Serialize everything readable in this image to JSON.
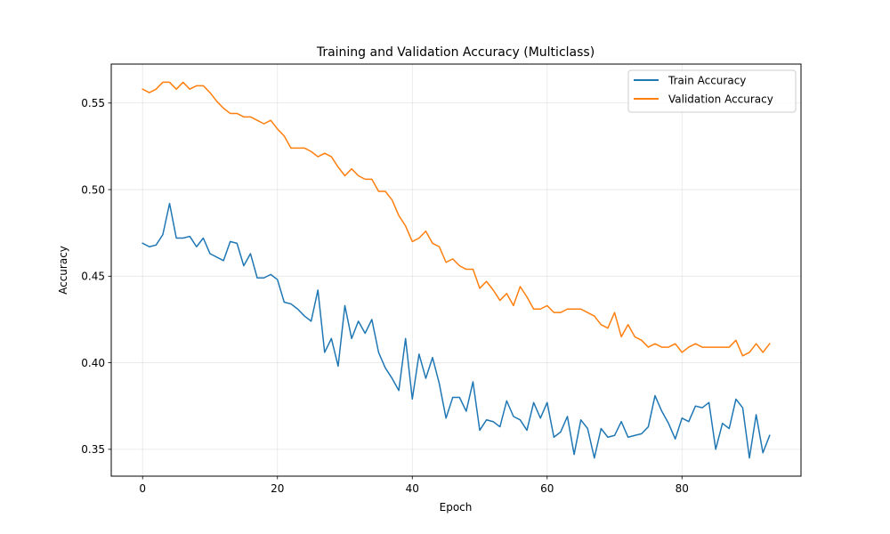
{
  "chart_data": {
    "type": "line",
    "title": "Training and Validation Accuracy (Multiclass)",
    "xlabel": "Epoch",
    "ylabel": "Accuracy",
    "xlim": [
      -4.65,
      97.65
    ],
    "ylim": [
      0.3345,
      0.5725
    ],
    "xticks": [
      0,
      20,
      40,
      60,
      80
    ],
    "yticks": [
      0.35,
      0.4,
      0.45,
      0.5,
      0.55
    ],
    "ytick_labels": [
      "0.35",
      "0.40",
      "0.45",
      "0.50",
      "0.55"
    ],
    "grid": true,
    "legend_position": "top-right",
    "series": [
      {
        "name": "Train Accuracy",
        "color": "#1f77b4",
        "values": [
          0.469,
          0.467,
          0.468,
          0.474,
          0.492,
          0.472,
          0.472,
          0.473,
          0.467,
          0.472,
          0.463,
          0.461,
          0.459,
          0.47,
          0.469,
          0.456,
          0.463,
          0.449,
          0.449,
          0.451,
          0.448,
          0.435,
          0.434,
          0.431,
          0.427,
          0.424,
          0.442,
          0.406,
          0.414,
          0.398,
          0.433,
          0.414,
          0.424,
          0.417,
          0.425,
          0.406,
          0.397,
          0.391,
          0.384,
          0.414,
          0.379,
          0.405,
          0.391,
          0.403,
          0.388,
          0.368,
          0.38,
          0.38,
          0.372,
          0.389,
          0.361,
          0.367,
          0.366,
          0.363,
          0.378,
          0.369,
          0.367,
          0.361,
          0.377,
          0.368,
          0.377,
          0.357,
          0.36,
          0.369,
          0.347,
          0.367,
          0.362,
          0.345,
          0.362,
          0.357,
          0.358,
          0.366,
          0.357,
          0.358,
          0.359,
          0.363,
          0.381,
          0.372,
          0.365,
          0.356,
          0.368,
          0.366,
          0.375,
          0.374,
          0.377,
          0.35,
          0.365,
          0.362,
          0.379,
          0.374,
          0.345,
          0.37,
          0.348,
          0.358
        ]
      },
      {
        "name": "Validation Accuracy",
        "color": "#ff7f0e",
        "values": [
          0.558,
          0.556,
          0.558,
          0.562,
          0.562,
          0.558,
          0.562,
          0.558,
          0.56,
          0.56,
          0.556,
          0.551,
          0.547,
          0.544,
          0.544,
          0.542,
          0.542,
          0.54,
          0.538,
          0.54,
          0.535,
          0.531,
          0.524,
          0.524,
          0.524,
          0.522,
          0.519,
          0.521,
          0.519,
          0.513,
          0.508,
          0.512,
          0.508,
          0.506,
          0.506,
          0.499,
          0.499,
          0.494,
          0.485,
          0.479,
          0.47,
          0.472,
          0.476,
          0.469,
          0.467,
          0.458,
          0.46,
          0.456,
          0.454,
          0.454,
          0.443,
          0.447,
          0.442,
          0.436,
          0.44,
          0.433,
          0.444,
          0.438,
          0.431,
          0.431,
          0.433,
          0.429,
          0.429,
          0.431,
          0.431,
          0.431,
          0.429,
          0.427,
          0.422,
          0.42,
          0.429,
          0.415,
          0.422,
          0.415,
          0.413,
          0.409,
          0.411,
          0.409,
          0.409,
          0.411,
          0.406,
          0.409,
          0.411,
          0.409,
          0.409,
          0.409,
          0.409,
          0.409,
          0.413,
          0.404,
          0.406,
          0.411,
          0.406,
          0.411
        ]
      }
    ]
  }
}
